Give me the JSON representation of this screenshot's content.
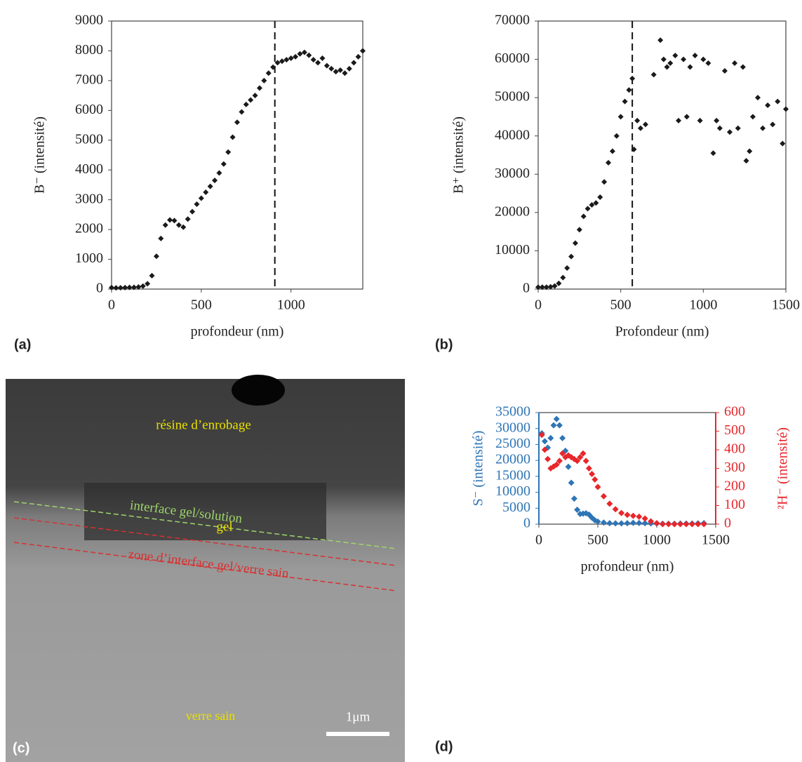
{
  "chart_data": [
    {
      "type": "scatter",
      "panel_label": "(a)",
      "x_label": "profondeur (nm)",
      "y_label": "B⁻ (intensité)",
      "color": "#1a1a1a",
      "xlim": [
        0,
        1400
      ],
      "xticks": [
        0,
        500,
        1000
      ],
      "ylim": [
        0,
        9000
      ],
      "yticks": [
        0,
        1000,
        2000,
        3000,
        4000,
        5000,
        6000,
        7000,
        8000,
        9000
      ],
      "vline": 910,
      "x": [
        0,
        25,
        50,
        75,
        100,
        125,
        150,
        175,
        200,
        225,
        250,
        275,
        300,
        325,
        350,
        375,
        400,
        425,
        450,
        475,
        500,
        525,
        550,
        575,
        600,
        625,
        650,
        675,
        700,
        725,
        750,
        775,
        800,
        825,
        850,
        875,
        900,
        925,
        950,
        975,
        1000,
        1025,
        1050,
        1075,
        1100,
        1125,
        1150,
        1175,
        1200,
        1225,
        1250,
        1275,
        1300,
        1325,
        1350,
        1375,
        1400
      ],
      "values": [
        50,
        40,
        45,
        50,
        55,
        60,
        70,
        100,
        180,
        450,
        1100,
        1700,
        2150,
        2320,
        2300,
        2150,
        2080,
        2350,
        2600,
        2850,
        3050,
        3250,
        3450,
        3650,
        3900,
        4200,
        4600,
        5100,
        5600,
        5950,
        6200,
        6350,
        6500,
        6750,
        7000,
        7250,
        7450,
        7600,
        7650,
        7700,
        7750,
        7800,
        7900,
        7950,
        7850,
        7700,
        7600,
        7750,
        7500,
        7400,
        7300,
        7350,
        7250,
        7400,
        7600,
        7800,
        8000
      ]
    },
    {
      "type": "scatter",
      "panel_label": "(b)",
      "x_label": "Profondeur (nm)",
      "y_label": "B⁺ (intensité)",
      "color": "#1a1a1a",
      "xlim": [
        0,
        1500
      ],
      "xticks": [
        0,
        500,
        1000,
        1500
      ],
      "ylim": [
        0,
        70000
      ],
      "yticks": [
        0,
        10000,
        20000,
        30000,
        40000,
        50000,
        60000,
        70000
      ],
      "vline": 570,
      "x": [
        0,
        25,
        50,
        75,
        100,
        125,
        150,
        175,
        200,
        225,
        250,
        275,
        300,
        325,
        350,
        375,
        400,
        425,
        450,
        475,
        500,
        525,
        550,
        570,
        580,
        600,
        620,
        650,
        700,
        740,
        760,
        780,
        800,
        830,
        850,
        880,
        900,
        920,
        950,
        980,
        1000,
        1030,
        1060,
        1080,
        1100,
        1130,
        1160,
        1190,
        1210,
        1240,
        1260,
        1280,
        1300,
        1330,
        1360,
        1390,
        1420,
        1450,
        1480,
        1500
      ],
      "values": [
        500,
        500,
        500,
        600,
        800,
        1500,
        3000,
        5500,
        8500,
        12000,
        15500,
        19000,
        21000,
        22000,
        22500,
        24000,
        28000,
        33000,
        36000,
        40000,
        45000,
        49000,
        52000,
        55000,
        36500,
        44000,
        42000,
        43000,
        56000,
        65000,
        60000,
        58000,
        59000,
        61000,
        44000,
        60000,
        45000,
        58000,
        61000,
        44000,
        60000,
        59000,
        35500,
        44000,
        42000,
        57000,
        41000,
        59000,
        42000,
        58000,
        33500,
        36000,
        45000,
        50000,
        42000,
        48000,
        43000,
        49000,
        38000,
        47000
      ]
    },
    {
      "type": "scatter",
      "panel_label": "(d)",
      "x_label": "profondeur (nm)",
      "y_label": "S⁻ (intensité)",
      "y2_label": "²H⁻ (intensité)",
      "xlim": [
        0,
        1500
      ],
      "xticks": [
        0,
        500,
        1000,
        1500
      ],
      "ylim": [
        0,
        35000
      ],
      "yticks": [
        0,
        5000,
        10000,
        15000,
        20000,
        25000,
        30000,
        35000
      ],
      "y2lim": [
        0,
        600
      ],
      "y2ticks": [
        0,
        100,
        200,
        300,
        400,
        500,
        600
      ],
      "x": [
        25,
        50,
        75,
        100,
        125,
        150,
        175,
        200,
        225,
        250,
        275,
        300,
        325,
        350,
        375,
        400,
        425,
        450,
        475,
        500,
        550,
        600,
        650,
        700,
        750,
        800,
        850,
        900,
        950,
        1000,
        1050,
        1100,
        1150,
        1200,
        1250,
        1300,
        1350,
        1400
      ],
      "series": [
        {
          "color": "#2e75b6",
          "values": [
            28500,
            26000,
            24000,
            27000,
            31000,
            33000,
            31000,
            27000,
            23000,
            18000,
            13000,
            8000,
            4500,
            3200,
            3300,
            3400,
            3000,
            2000,
            1200,
            800,
            500,
            300,
            250,
            250,
            300,
            400,
            350,
            300,
            250,
            200,
            150,
            150,
            150,
            200,
            200,
            200,
            250,
            300
          ]
        },
        {
          "color": "#e8262b",
          "axis": "y2",
          "values": [
            480,
            400,
            350,
            300,
            310,
            320,
            340,
            380,
            360,
            370,
            360,
            350,
            340,
            360,
            380,
            340,
            300,
            270,
            240,
            200,
            150,
            110,
            80,
            60,
            50,
            45,
            40,
            30,
            15,
            5,
            0,
            0,
            0,
            0,
            0,
            0,
            0,
            0
          ]
        }
      ]
    }
  ],
  "image": {
    "panel_label": "(c)",
    "labels": [
      "résine d’enrobage",
      "interface gel/solution",
      "gel",
      "zone d’interface gel/verre sain",
      "verre sain"
    ],
    "scale_bar": "1μm"
  }
}
